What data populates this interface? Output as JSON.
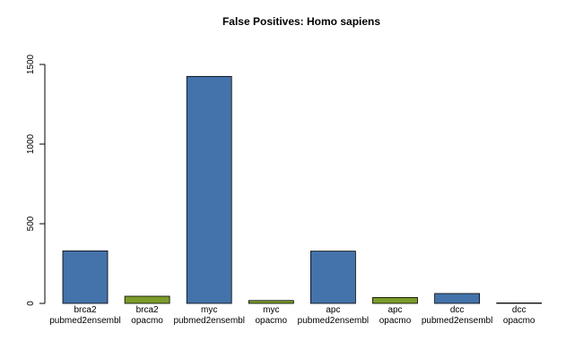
{
  "chart_data": {
    "type": "bar",
    "title": "False Positives: Homo sapiens",
    "xlabel": "",
    "ylabel": "",
    "ylim": [
      0,
      1500
    ],
    "yticks": [
      0,
      500,
      1000,
      1500
    ],
    "grid": false,
    "categories": [
      [
        "brca2",
        "pubmed2ensembl"
      ],
      [
        "brca2",
        "opacmo"
      ],
      [
        "myc",
        "pubmed2ensembl"
      ],
      [
        "myc",
        "opacmo"
      ],
      [
        "apc",
        "pubmed2ensembl"
      ],
      [
        "apc",
        "opacmo"
      ],
      [
        "dcc",
        "pubmed2ensembl"
      ],
      [
        "dcc",
        "opacmo"
      ]
    ],
    "values": [
      330,
      45,
      1425,
      18,
      328,
      37,
      62,
      3
    ],
    "colors": [
      "#4472aa",
      "#7b9c2a",
      "#4472aa",
      "#7b9c2a",
      "#4472aa",
      "#7b9c2a",
      "#4472aa",
      "#7b9c2a"
    ]
  }
}
